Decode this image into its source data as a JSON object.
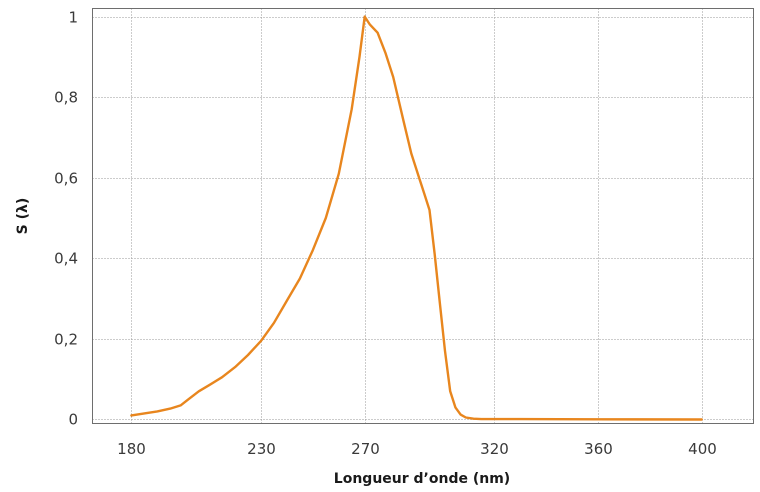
{
  "chart_data": {
    "type": "line",
    "title": "",
    "xlabel": "Longueur d’onde (nm)",
    "ylabel": "S (λ)",
    "xlim": [
      165,
      420
    ],
    "ylim": [
      -0.01,
      1.02
    ],
    "xticks": [
      {
        "value": 180,
        "label": "180"
      },
      {
        "value": 230,
        "label": "230"
      },
      {
        "value": 270,
        "label": "270"
      },
      {
        "value": 320,
        "label": "320"
      },
      {
        "value": 360,
        "label": "360"
      },
      {
        "value": 400,
        "label": "400"
      }
    ],
    "x_tick_positions": [
      180,
      230,
      270,
      320,
      360,
      400
    ],
    "yticks": [
      {
        "value": 0,
        "label": "0"
      },
      {
        "value": 0.2,
        "label": "0,2"
      },
      {
        "value": 0.4,
        "label": "0,4"
      },
      {
        "value": 0.6,
        "label": "0,6"
      },
      {
        "value": 0.8,
        "label": "0,8"
      },
      {
        "value": 1,
        "label": "1"
      }
    ],
    "grid": true,
    "color": "#e8861e",
    "series": [
      {
        "x": [
          180,
          185,
          190,
          195,
          199,
          202,
          206,
          210,
          215,
          220,
          225,
          230,
          235,
          240,
          245,
          250,
          255,
          260,
          265,
          268,
          270,
          272,
          275,
          278,
          281,
          285,
          288,
          291,
          293,
          295,
          297,
          299,
          301,
          303,
          305,
          307,
          309,
          312,
          315,
          320,
          330,
          360,
          400
        ],
        "y": [
          0.01,
          0.015,
          0.02,
          0.027,
          0.035,
          0.05,
          0.07,
          0.085,
          0.105,
          0.13,
          0.16,
          0.195,
          0.24,
          0.295,
          0.35,
          0.42,
          0.5,
          0.61,
          0.77,
          0.9,
          1.0,
          0.98,
          0.96,
          0.91,
          0.85,
          0.74,
          0.66,
          0.6,
          0.56,
          0.52,
          0.41,
          0.29,
          0.17,
          0.07,
          0.03,
          0.012,
          0.005,
          0.002,
          0.001,
          0.001,
          0.001,
          0.0005,
          0.0
        ]
      }
    ]
  }
}
